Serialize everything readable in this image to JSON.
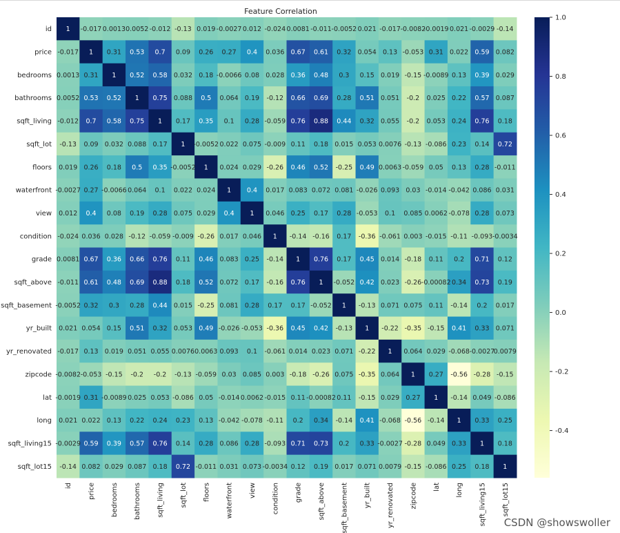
{
  "watermark": "CSDN @showswoller",
  "chart_data": {
    "type": "heatmap",
    "title": "Feature Correlation",
    "labels": [
      "id",
      "price",
      "bedrooms",
      "bathrooms",
      "sqft_living",
      "sqft_lot",
      "floors",
      "waterfront",
      "view",
      "condition",
      "grade",
      "sqft_above",
      "sqft_basement",
      "yr_built",
      "yr_renovated",
      "zipcode",
      "lat",
      "long",
      "sqft_living15",
      "sqft_lot15"
    ],
    "values": [
      [
        1,
        -0.017,
        0.0013,
        0.0052,
        -0.012,
        -0.13,
        0.019,
        -0.0027,
        0.012,
        -0.024,
        0.0081,
        -0.011,
        -0.0052,
        0.021,
        -0.017,
        -0.0082,
        -0.0019,
        0.021,
        -0.0029,
        -0.14
      ],
      [
        -0.017,
        1,
        0.31,
        0.53,
        0.7,
        0.09,
        0.26,
        0.27,
        0.4,
        0.036,
        0.67,
        0.61,
        0.32,
        0.054,
        0.13,
        -0.053,
        0.31,
        0.022,
        0.59,
        0.082
      ],
      [
        0.0013,
        0.31,
        1,
        0.52,
        0.58,
        0.032,
        0.18,
        -0.0066,
        0.08,
        0.028,
        0.36,
        0.48,
        0.3,
        0.15,
        0.019,
        -0.15,
        -0.0089,
        0.13,
        0.39,
        0.029
      ],
      [
        0.0052,
        0.53,
        0.52,
        1,
        0.75,
        0.088,
        0.5,
        0.064,
        0.19,
        -0.12,
        0.66,
        0.69,
        0.28,
        0.51,
        0.051,
        -0.2,
        0.025,
        0.22,
        0.57,
        0.087
      ],
      [
        -0.012,
        0.7,
        0.58,
        0.75,
        1,
        0.17,
        0.35,
        0.1,
        0.28,
        -0.059,
        0.76,
        0.88,
        0.44,
        0.32,
        0.055,
        -0.2,
        0.053,
        0.24,
        0.76,
        0.18
      ],
      [
        -0.13,
        0.09,
        0.032,
        0.088,
        0.17,
        1,
        -0.0052,
        0.022,
        0.075,
        -0.009,
        0.11,
        0.18,
        0.015,
        0.053,
        0.0076,
        -0.13,
        -0.086,
        0.23,
        0.14,
        0.72
      ],
      [
        0.019,
        0.26,
        0.18,
        0.5,
        0.35,
        -0.0052,
        1,
        0.024,
        0.029,
        -0.26,
        0.46,
        0.52,
        -0.25,
        0.49,
        0.0063,
        -0.059,
        0.05,
        0.13,
        0.28,
        -0.011
      ],
      [
        -0.0027,
        0.27,
        -0.0066,
        0.064,
        0.1,
        0.022,
        0.024,
        1,
        0.4,
        0.017,
        0.083,
        0.072,
        0.081,
        -0.026,
        0.093,
        0.03,
        -0.014,
        -0.042,
        0.086,
        0.031
      ],
      [
        0.012,
        0.4,
        0.08,
        0.19,
        0.28,
        0.075,
        0.029,
        0.4,
        1,
        0.046,
        0.25,
        0.17,
        0.28,
        -0.053,
        0.1,
        0.085,
        0.0062,
        -0.078,
        0.28,
        0.073
      ],
      [
        -0.024,
        0.036,
        0.028,
        -0.12,
        -0.059,
        -0.009,
        -0.26,
        0.017,
        0.046,
        1,
        -0.14,
        -0.16,
        0.17,
        -0.36,
        -0.061,
        0.003,
        -0.015,
        -0.11,
        -0.093,
        -0.0034
      ],
      [
        0.0081,
        0.67,
        0.36,
        0.66,
        0.76,
        0.11,
        0.46,
        0.083,
        0.25,
        -0.14,
        1,
        0.76,
        0.17,
        0.45,
        0.014,
        -0.18,
        0.11,
        0.2,
        0.71,
        0.12
      ],
      [
        -0.011,
        0.61,
        0.48,
        0.69,
        0.88,
        0.18,
        0.52,
        0.072,
        0.17,
        -0.16,
        0.76,
        1,
        -0.052,
        0.42,
        0.023,
        -0.26,
        -0.00082,
        0.34,
        0.73,
        0.19
      ],
      [
        -0.0052,
        0.32,
        0.3,
        0.28,
        0.44,
        0.015,
        -0.25,
        0.081,
        0.28,
        0.17,
        0.17,
        -0.052,
        1,
        -0.13,
        0.071,
        0.075,
        0.11,
        -0.14,
        0.2,
        0.017
      ],
      [
        0.021,
        0.054,
        0.15,
        0.51,
        0.32,
        0.053,
        0.49,
        -0.026,
        -0.053,
        -0.36,
        0.45,
        0.42,
        -0.13,
        1,
        -0.22,
        -0.35,
        -0.15,
        0.41,
        0.33,
        0.071
      ],
      [
        -0.017,
        0.13,
        0.019,
        0.051,
        0.055,
        0.0076,
        0.0063,
        0.093,
        0.1,
        -0.061,
        0.014,
        0.023,
        0.071,
        -0.22,
        1,
        0.064,
        0.029,
        -0.068,
        -0.0027,
        0.0079
      ],
      [
        -0.0082,
        -0.053,
        -0.15,
        -0.2,
        -0.2,
        -0.13,
        -0.059,
        0.03,
        0.085,
        0.003,
        -0.18,
        -0.26,
        0.075,
        -0.35,
        0.064,
        1,
        0.27,
        -0.56,
        -0.28,
        -0.15
      ],
      [
        -0.0019,
        0.31,
        -0.0089,
        0.025,
        0.053,
        -0.086,
        0.05,
        -0.014,
        0.0062,
        -0.015,
        0.11,
        -0.00082,
        0.11,
        -0.15,
        0.029,
        0.27,
        1,
        -0.14,
        0.049,
        -0.086
      ],
      [
        0.021,
        0.022,
        0.13,
        0.22,
        0.24,
        0.23,
        0.13,
        -0.042,
        -0.078,
        -0.11,
        0.2,
        0.34,
        -0.14,
        0.41,
        -0.068,
        -0.56,
        -0.14,
        1,
        0.33,
        0.25
      ],
      [
        -0.0029,
        0.59,
        0.39,
        0.57,
        0.76,
        0.14,
        0.28,
        0.086,
        0.28,
        -0.093,
        0.71,
        0.73,
        0.2,
        0.33,
        -0.0027,
        -0.28,
        0.049,
        0.33,
        1,
        0.18
      ],
      [
        -0.14,
        0.082,
        0.029,
        0.087,
        0.18,
        0.72,
        -0.011,
        0.031,
        0.073,
        -0.0034,
        0.12,
        0.19,
        0.017,
        0.071,
        0.0079,
        -0.15,
        -0.086,
        0.25,
        0.18,
        1
      ]
    ],
    "colorscale": "YlGnBu",
    "vmin": -0.56,
    "vmax": 1.0,
    "colorbar_ticks": [
      "1.0",
      "0.8",
      "0.6",
      "0.4",
      "0.2",
      "0.0",
      "-0.2",
      "-0.4"
    ],
    "colorbar_tick_values": [
      1.0,
      0.8,
      0.6,
      0.4,
      0.2,
      0.0,
      -0.2,
      -0.4
    ],
    "annotations": true
  }
}
